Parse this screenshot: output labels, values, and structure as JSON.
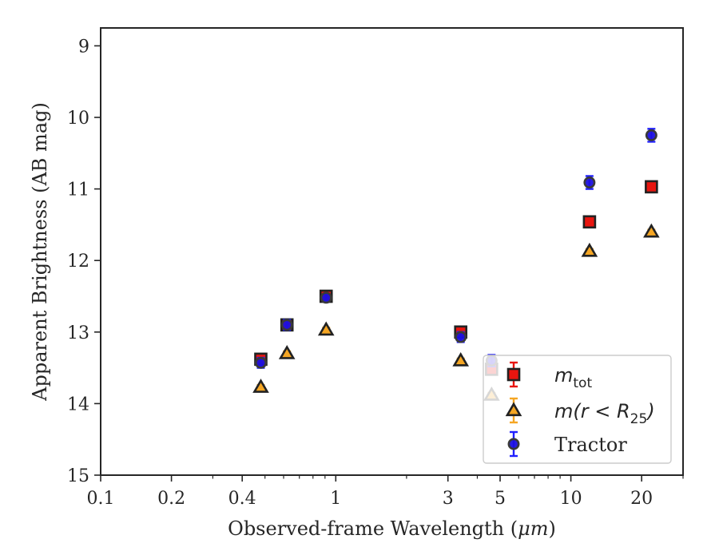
{
  "chart_data": {
    "type": "scatter",
    "xlabel_prefix": "Observed-frame Wavelength (",
    "xlabel_unit": "μm",
    "xlabel_suffix": ")",
    "ylabel": "Apparent Brightness (AB mag)",
    "xscale": "log",
    "xlim": [
      0.1,
      30
    ],
    "ylim": [
      15,
      8.75
    ],
    "y_inverted": true,
    "xticks": [
      {
        "value": 0.1,
        "label": "0.1"
      },
      {
        "value": 0.2,
        "label": "0.2"
      },
      {
        "value": 0.4,
        "label": "0.4"
      },
      {
        "value": 1,
        "label": "1"
      },
      {
        "value": 3,
        "label": "3"
      },
      {
        "value": 5,
        "label": "5"
      },
      {
        "value": 10,
        "label": "10"
      },
      {
        "value": 20,
        "label": "20"
      }
    ],
    "xminor": [
      0.3,
      0.5,
      0.6,
      0.7,
      0.8,
      0.9,
      2,
      4,
      6,
      7,
      8,
      9,
      30
    ],
    "yticks": [
      {
        "value": 9,
        "label": "9"
      },
      {
        "value": 10,
        "label": "10"
      },
      {
        "value": 11,
        "label": "11"
      },
      {
        "value": 12,
        "label": "12"
      },
      {
        "value": 13,
        "label": "13"
      },
      {
        "value": 14,
        "label": "14"
      },
      {
        "value": 15,
        "label": "15"
      }
    ],
    "legend_placement": "lower-right",
    "series": [
      {
        "key": "mtot",
        "legend_main": "m",
        "legend_sub": "tot",
        "marker": "square",
        "color": "#e8150f",
        "errcolor": "#e8150f",
        "points": [
          {
            "x": 0.48,
            "y": 13.38,
            "err": 0.06
          },
          {
            "x": 0.62,
            "y": 12.9,
            "err": 0.05
          },
          {
            "x": 0.91,
            "y": 12.5,
            "err": 0.05
          },
          {
            "x": 3.4,
            "y": 13.0,
            "err": 0.06
          },
          {
            "x": 4.6,
            "y": 13.52,
            "err": 0.06
          },
          {
            "x": 12.0,
            "y": 11.46,
            "err": 0.06
          },
          {
            "x": 22.0,
            "y": 10.97,
            "err": 0.05
          }
        ]
      },
      {
        "key": "mr25",
        "legend_main": "m",
        "legend_math_tail": "(r < R",
        "legend_sub": "25",
        "legend_close": ")",
        "marker": "triangle",
        "color": "#f5a623",
        "errcolor": "#f5a623",
        "points": [
          {
            "x": 0.48,
            "y": 13.77,
            "err": 0.03
          },
          {
            "x": 0.62,
            "y": 13.3,
            "err": 0.03
          },
          {
            "x": 0.91,
            "y": 12.97,
            "err": 0.03
          },
          {
            "x": 3.4,
            "y": 13.4,
            "err": 0.03
          },
          {
            "x": 4.6,
            "y": 13.88,
            "err": 0.03
          },
          {
            "x": 12.0,
            "y": 11.87,
            "err": 0.03
          },
          {
            "x": 22.0,
            "y": 11.6,
            "err": 0.03
          }
        ]
      },
      {
        "key": "tractor",
        "legend_text": "Tractor",
        "marker": "circle",
        "color": "#1c10e0",
        "errcolor": "#2020ff",
        "points": [
          {
            "x": 0.48,
            "y": 13.43,
            "err": 0.07
          },
          {
            "x": 0.62,
            "y": 12.9,
            "err": 0.07
          },
          {
            "x": 0.91,
            "y": 12.52,
            "err": 0.05
          },
          {
            "x": 3.4,
            "y": 13.07,
            "err": 0.07
          },
          {
            "x": 4.6,
            "y": 13.4,
            "err": 0.08
          },
          {
            "x": 12.0,
            "y": 10.91,
            "err": 0.09
          },
          {
            "x": 22.0,
            "y": 10.25,
            "err": 0.09
          }
        ]
      }
    ]
  }
}
